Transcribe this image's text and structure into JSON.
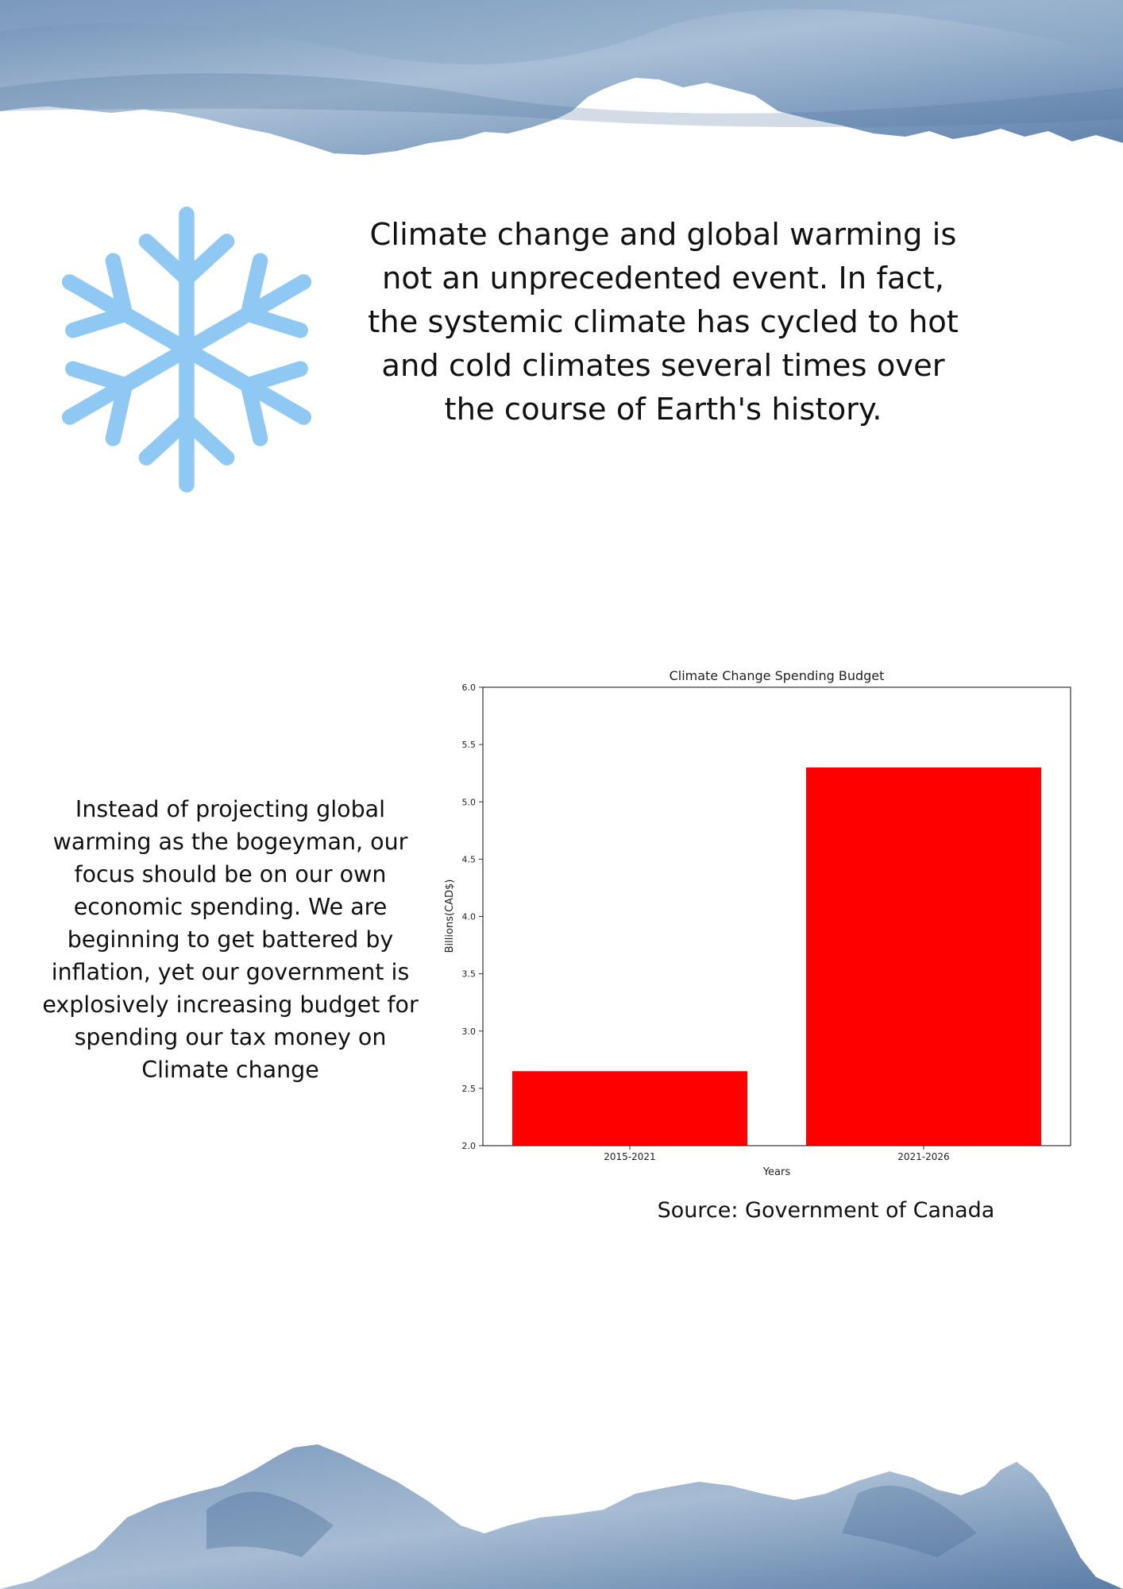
{
  "intro_text": "Climate change and global warming is not an unprecedented event. In fact, the systemic climate has cycled to hot and cold climates several times over the course of Earth's history.",
  "side_text": "Instead of projecting  global warming as the bogeyman, our focus should be on our own economic spending. We are beginning to get battered by inflation, yet our government is explosively increasing budget for spending  our tax money on Climate change",
  "source": "Source: Government of Canada",
  "colors": {
    "bar": "#ff0000",
    "snowflake": "#90c8f4",
    "watercolor": "#5f83ad"
  },
  "icons": {
    "snowflake": "snowflake-icon"
  },
  "chart_data": {
    "type": "bar",
    "title": "Climate Change Spending Budget",
    "xlabel": "Years",
    "ylabel": "Billions(CAD$)",
    "categories": [
      "2015-2021",
      "2021-2026"
    ],
    "values": [
      2.65,
      5.3
    ],
    "ylim": [
      2.0,
      6.0
    ],
    "yticks": [
      "2.0",
      "2.5",
      "3.0",
      "3.5",
      "4.0",
      "4.5",
      "5.0",
      "5.5",
      "6.0"
    ],
    "grid": false,
    "legend": "none"
  }
}
